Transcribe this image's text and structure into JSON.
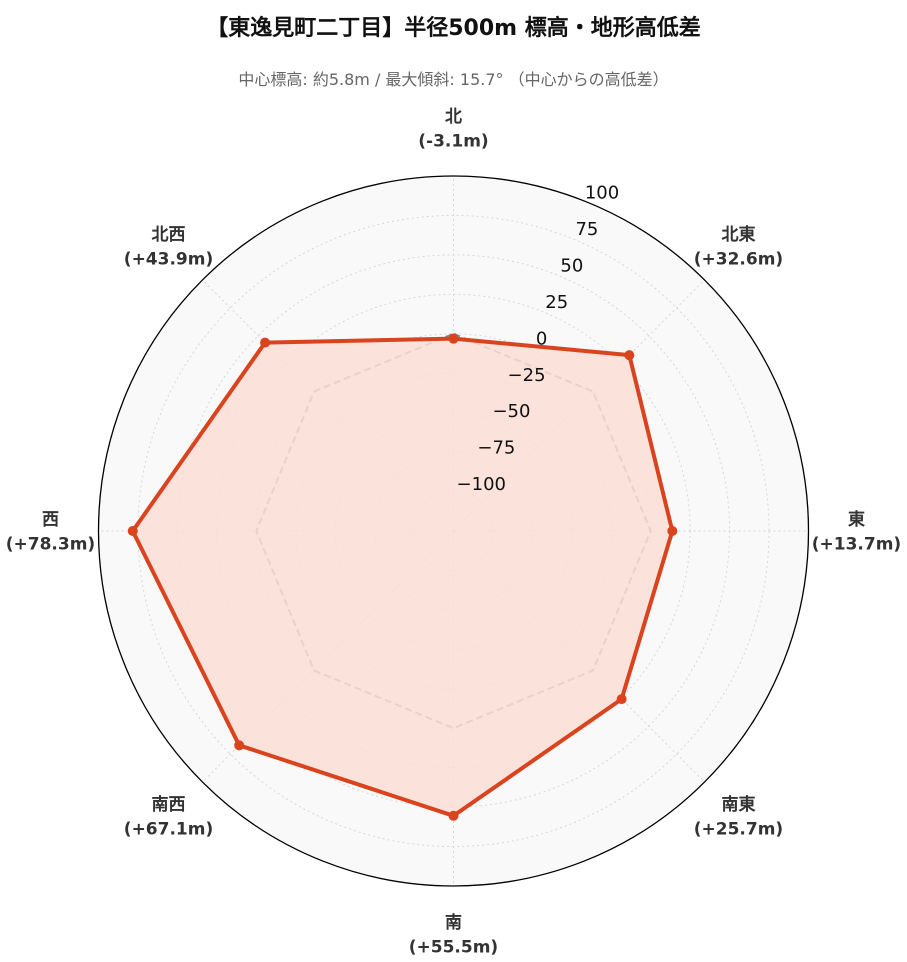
{
  "title": "【東逸見町二丁目】半径500m 標高・地形高低差",
  "subtitle": "中心標高: 約5.8m / 最大傾斜: 15.7° （中心からの高低差）",
  "colors": {
    "series": "#d9431e",
    "fill": "#fcded6",
    "reference": "#888888",
    "background": "#f9f9f9",
    "grid": "#d7d7d7"
  },
  "chart_data": {
    "type": "radar",
    "title": "【東逸見町二丁目】半径500m 標高・地形高低差",
    "categories": [
      "北",
      "北東",
      "東",
      "南東",
      "南",
      "南西",
      "西",
      "北西"
    ],
    "category_values": [
      "(-3.1m)",
      "(+32.6m)",
      "(+13.7m)",
      "(+25.7m)",
      "(+55.5m)",
      "(+67.1m)",
      "(+78.3m)",
      "(+43.9m)"
    ],
    "series": [
      {
        "values": [
          -3.1,
          32.6,
          13.7,
          25.7,
          55.5,
          67.1,
          78.3,
          43.9
        ]
      }
    ],
    "reference_line": {
      "value": 0,
      "style": "dashed"
    },
    "rlim": [
      -125,
      100
    ],
    "rticks": [
      -100,
      -75,
      -50,
      -25,
      0,
      25,
      50,
      75,
      100
    ],
    "rtick_labels": [
      "−100",
      "−75",
      "−50",
      "−25",
      "0",
      "25",
      "50",
      "75",
      "100"
    ],
    "grid": true
  }
}
